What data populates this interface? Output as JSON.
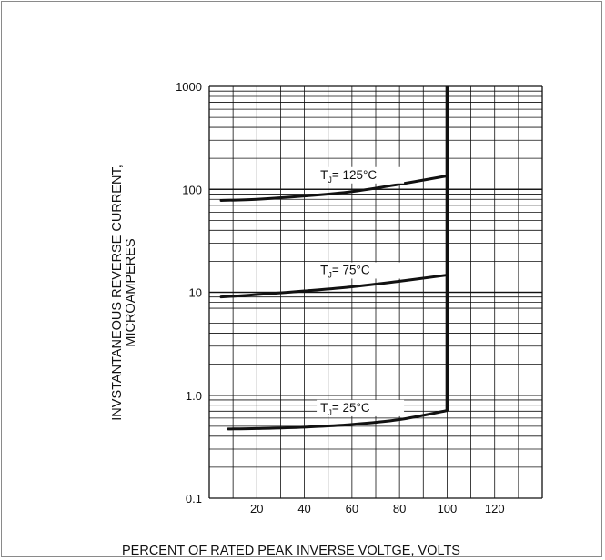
{
  "chart_data": {
    "type": "line",
    "title": "",
    "xlabel": "PERCENT OF RATED PEAK INVERSE VOLTGE, VOLTS",
    "ylabel_lines": [
      "INVSTANTANEOUS REVERSE CURRENT,",
      "MICROAMPERES"
    ],
    "y_scale": "log",
    "xlim": [
      0,
      140
    ],
    "ylim": [
      0.1,
      1000
    ],
    "x_ticks": [
      20,
      40,
      60,
      80,
      100,
      120
    ],
    "x_tick_labels": [
      "20",
      "40",
      "60",
      "80",
      "100",
      "120"
    ],
    "y_ticks": [
      0.1,
      1,
      10,
      100,
      1000
    ],
    "y_tick_labels": [
      "0.1",
      "1.0",
      "10",
      "100",
      "1000"
    ],
    "grid": true,
    "breakdown_line": {
      "x": 100,
      "y_from": 0.7,
      "y_to": 1000
    },
    "series": [
      {
        "label_main": "T",
        "label_sub": "J",
        "label_rest": "= 125°C",
        "x": [
          5,
          20,
          40,
          60,
          80,
          100
        ],
        "y": [
          78,
          80,
          86,
          95,
          112,
          135
        ]
      },
      {
        "label_main": "T",
        "label_sub": "J",
        "label_rest": "= 75°C",
        "x": [
          5,
          20,
          40,
          60,
          80,
          100
        ],
        "y": [
          9.0,
          9.5,
          10.3,
          11.3,
          12.8,
          14.7
        ]
      },
      {
        "label_main": "T",
        "label_sub": "J",
        "label_rest": "= 25°C",
        "x": [
          8,
          20,
          40,
          60,
          80,
          100
        ],
        "y": [
          0.47,
          0.475,
          0.49,
          0.52,
          0.58,
          0.71
        ]
      }
    ],
    "line_color": "#111111",
    "grid_color": "#111111"
  }
}
